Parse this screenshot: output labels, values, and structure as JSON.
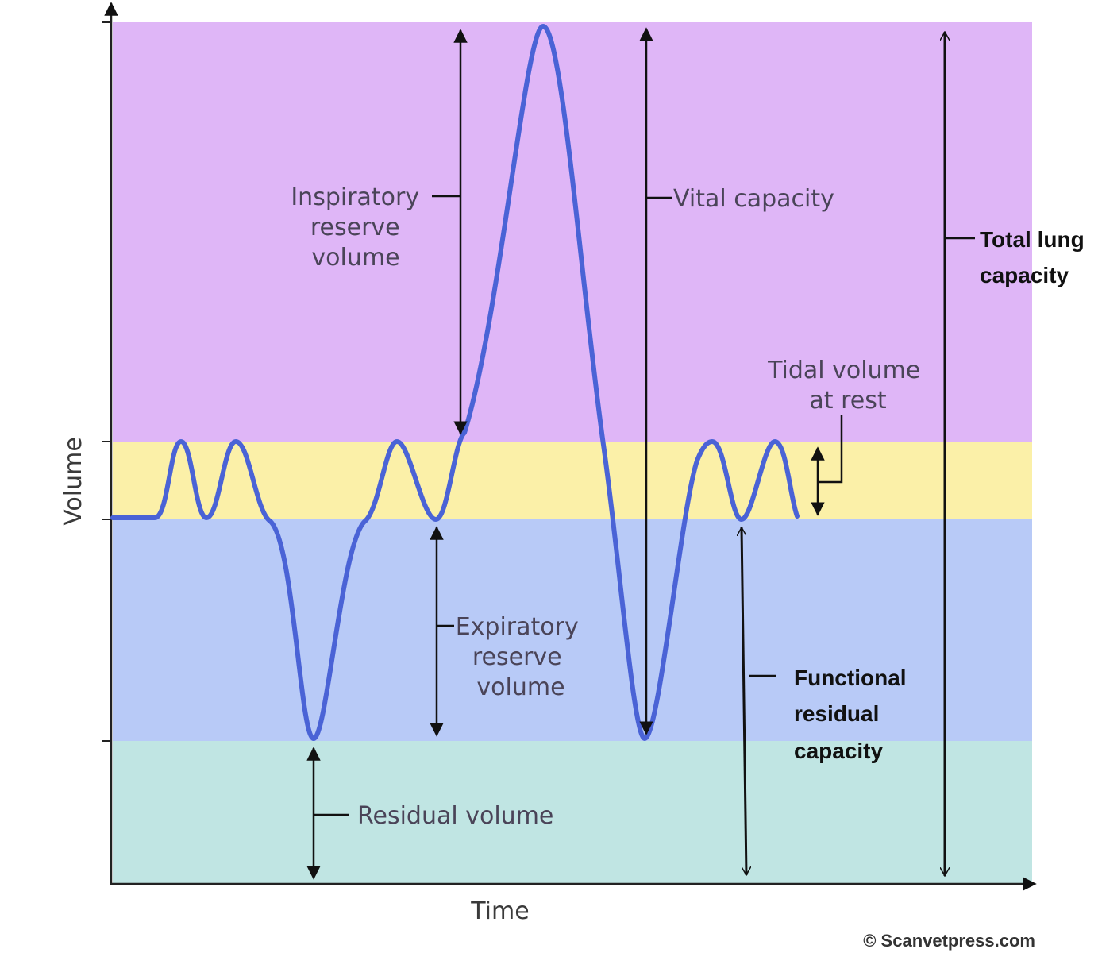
{
  "axes": {
    "x_label": "Time",
    "y_label": "Volume"
  },
  "zones": {
    "inspiratory_color": "#dfb6f7",
    "tidal_color": "#fbf0a8",
    "expiratory_color": "#b8caf7",
    "residual_color": "#c0e5e3"
  },
  "trace_color": "#4a63d6",
  "labels": {
    "inspiratory_reserve_volume": [
      "Inspiratory",
      "reserve",
      "volume"
    ],
    "vital_capacity": "Vital capacity",
    "total_lung_capacity": [
      "Total lung",
      "capacity"
    ],
    "tidal_volume": [
      "Tidal volume",
      "at rest"
    ],
    "expiratory_reserve_volume": [
      "Expiratory",
      "reserve",
      "volume"
    ],
    "functional_residual_capacity": [
      "Functional",
      "residual",
      "capacity"
    ],
    "residual_volume": "Residual volume"
  },
  "credit": "© Scanvetpress.com"
}
